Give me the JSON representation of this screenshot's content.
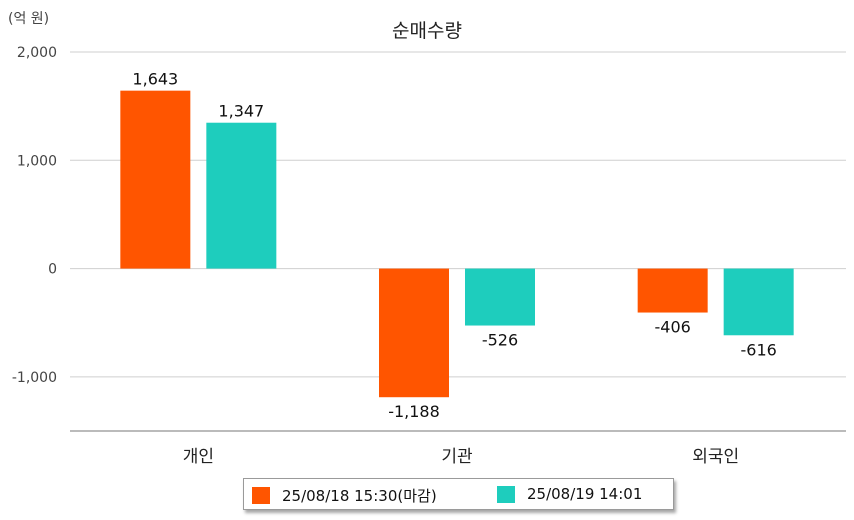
{
  "chart_data": {
    "type": "bar",
    "title": "순매수량",
    "unit_label": "(억 원)",
    "categories": [
      "개인",
      "기관",
      "외국인"
    ],
    "series": [
      {
        "name": "25/08/18 15:30(마감)",
        "color": "#ff5500",
        "values": [
          1643,
          -1188,
          -406
        ],
        "labels": [
          "1,643",
          "-1,188",
          "-406"
        ]
      },
      {
        "name": "25/08/19 14:01",
        "color": "#1ecdbd",
        "values": [
          1347,
          -526,
          -616
        ],
        "labels": [
          "1,347",
          "-526",
          "-616"
        ]
      }
    ],
    "ylim": [
      -1500,
      2000
    ],
    "yticks": [
      2000,
      1000,
      0,
      -1000
    ],
    "ytick_labels": [
      "2,000",
      "1,000",
      "0",
      "-1,000"
    ],
    "grid": true,
    "legend_position": "bottom"
  }
}
